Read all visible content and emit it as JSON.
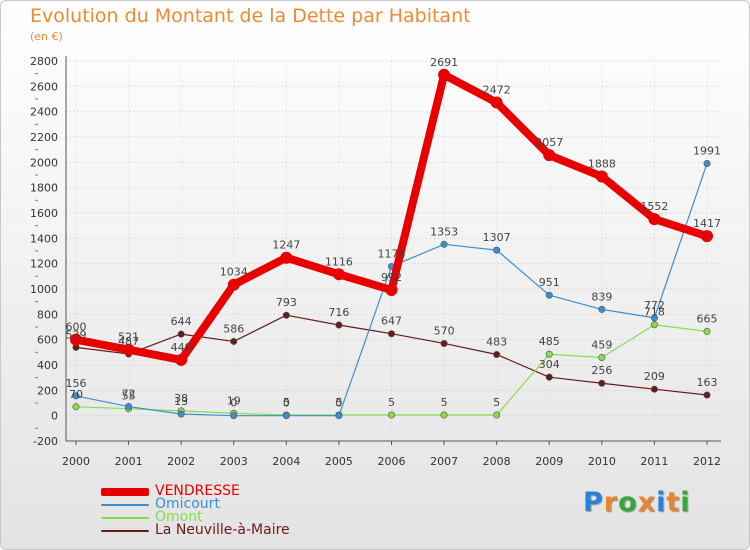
{
  "title": "Evolution du Montant de la Dette par Habitant",
  "subtitle": "(en €)",
  "logo": {
    "text": "Proxiti",
    "letters": [
      {
        "ch": "P",
        "color": "#2a7fd8"
      },
      {
        "ch": "r",
        "color": "#e8862c"
      },
      {
        "ch": "o",
        "color": "#35a83c"
      },
      {
        "ch": "x",
        "color": "#e8862c"
      },
      {
        "ch": "i",
        "color": "#2a7fd8"
      },
      {
        "ch": "t",
        "color": "#e8862c"
      },
      {
        "ch": "i",
        "color": "#35a83c"
      }
    ]
  },
  "chart_data": {
    "type": "line",
    "title": "Evolution du Montant de la Dette par Habitant",
    "subtitle": "(en €)",
    "x": [
      "2000",
      "2001",
      "2002",
      "2003",
      "2004",
      "2005",
      "2006",
      "2007",
      "2008",
      "2009",
      "2010",
      "2011",
      "2012"
    ],
    "yticks": [
      -200,
      0,
      200,
      400,
      600,
      800,
      1000,
      1200,
      1400,
      1600,
      1800,
      2000,
      2200,
      2400,
      2600,
      2800
    ],
    "ylim": [
      -200,
      2800
    ],
    "grid": "horizontal dotted",
    "legend_position": "bottom-left",
    "series": [
      {
        "name": "VENDRESSE",
        "color": "#e80000",
        "values": [
          600,
          521,
          440,
          1034,
          1247,
          1116,
          992,
          2691,
          2472,
          2057,
          1888,
          1552,
          1417
        ]
      },
      {
        "name": "Omicourt",
        "color": "#3b8fd0",
        "values": [
          156,
          72,
          13,
          0,
          0,
          0,
          1178,
          1353,
          1307,
          951,
          839,
          772,
          1991
        ]
      },
      {
        "name": "Omont",
        "color": "#88dd4c",
        "values": [
          70,
          55,
          38,
          19,
          5,
          5,
          5,
          5,
          5,
          485,
          459,
          718,
          665
        ]
      },
      {
        "name": "La Neuville-à-Maire",
        "color": "#6b1a1a",
        "values": [
          539,
          487,
          644,
          586,
          793,
          716,
          647,
          570,
          483,
          304,
          256,
          209,
          163
        ]
      }
    ]
  }
}
